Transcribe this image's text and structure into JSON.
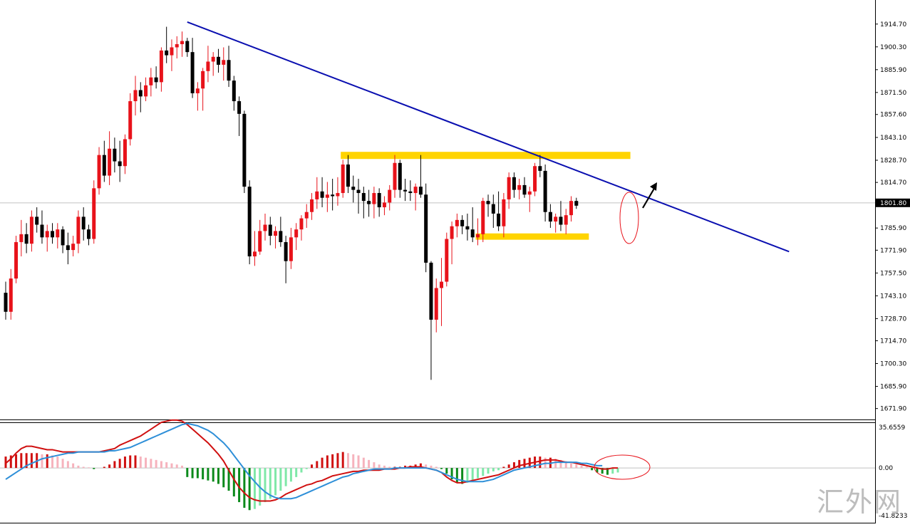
{
  "chart_data": [
    {
      "type": "candlestick",
      "price_axis": {
        "range": [
          1665.0,
          1920.0
        ],
        "ticks": [
          "1914.70",
          "1900.30",
          "1885.90",
          "1871.50",
          "1857.60",
          "1843.10",
          "1828.70",
          "1814.70",
          "1801.80",
          "1785.90",
          "1771.90",
          "1757.50",
          "1743.10",
          "1728.70",
          "1714.70",
          "1700.30",
          "1685.90",
          "1671.90"
        ],
        "tick_values": [
          1914.7,
          1900.3,
          1885.9,
          1871.5,
          1857.6,
          1843.1,
          1828.7,
          1814.7,
          1801.8,
          1785.9,
          1771.9,
          1757.5,
          1743.1,
          1728.7,
          1714.7,
          1700.3,
          1685.9,
          1671.9
        ]
      },
      "current_price": {
        "label": "1801.80",
        "value": 1801.8
      },
      "candles": [
        [
          1745,
          1752,
          1728,
          1733
        ],
        [
          1733,
          1760,
          1728,
          1754
        ],
        [
          1754,
          1781,
          1751,
          1777
        ],
        [
          1777,
          1791,
          1768,
          1782
        ],
        [
          1782,
          1789,
          1770,
          1776
        ],
        [
          1776,
          1797,
          1771,
          1793
        ],
        [
          1793,
          1799,
          1783,
          1788
        ],
        [
          1788,
          1797,
          1776,
          1780
        ],
        [
          1780,
          1788,
          1771,
          1784
        ],
        [
          1784,
          1789,
          1776,
          1780
        ],
        [
          1780,
          1789,
          1773,
          1785
        ],
        [
          1785,
          1787,
          1770,
          1775
        ],
        [
          1775,
          1783,
          1763,
          1772
        ],
        [
          1772,
          1781,
          1768,
          1776
        ],
        [
          1776,
          1797,
          1770,
          1793
        ],
        [
          1793,
          1799,
          1778,
          1785
        ],
        [
          1785,
          1788,
          1775,
          1779
        ],
        [
          1779,
          1816,
          1776,
          1811
        ],
        [
          1811,
          1837,
          1807,
          1832
        ],
        [
          1832,
          1841,
          1815,
          1819
        ],
        [
          1819,
          1847,
          1813,
          1836
        ],
        [
          1836,
          1843,
          1821,
          1828
        ],
        [
          1828,
          1841,
          1815,
          1825
        ],
        [
          1825,
          1845,
          1820,
          1842
        ],
        [
          1842,
          1871,
          1838,
          1866
        ],
        [
          1866,
          1882,
          1857,
          1873
        ],
        [
          1873,
          1878,
          1859,
          1869
        ],
        [
          1869,
          1881,
          1866,
          1876
        ],
        [
          1876,
          1887,
          1869,
          1881
        ],
        [
          1881,
          1888,
          1874,
          1878
        ],
        [
          1878,
          1900,
          1872,
          1898
        ],
        [
          1898,
          1913,
          1890,
          1895
        ],
        [
          1895,
          1905,
          1885,
          1900
        ],
        [
          1900,
          1907,
          1893,
          1902
        ],
        [
          1902,
          1910,
          1894,
          1904
        ],
        [
          1904,
          1906,
          1894,
          1897
        ],
        [
          1897,
          1906,
          1868,
          1871
        ],
        [
          1871,
          1878,
          1860,
          1874
        ],
        [
          1874,
          1887,
          1860,
          1885
        ],
        [
          1885,
          1901,
          1878,
          1891
        ],
        [
          1891,
          1897,
          1882,
          1894
        ],
        [
          1894,
          1899,
          1884,
          1889
        ],
        [
          1889,
          1900,
          1879,
          1892
        ],
        [
          1892,
          1901,
          1875,
          1879
        ],
        [
          1879,
          1882,
          1860,
          1866
        ],
        [
          1866,
          1869,
          1844,
          1858
        ],
        [
          1858,
          1860,
          1808,
          1812
        ],
        [
          1812,
          1816,
          1763,
          1768
        ],
        [
          1768,
          1784,
          1762,
          1771
        ],
        [
          1771,
          1791,
          1769,
          1784
        ],
        [
          1784,
          1795,
          1778,
          1788
        ],
        [
          1788,
          1793,
          1775,
          1781
        ],
        [
          1781,
          1787,
          1773,
          1784
        ],
        [
          1784,
          1793,
          1774,
          1777
        ],
        [
          1777,
          1781,
          1751,
          1765
        ],
        [
          1765,
          1786,
          1760,
          1780
        ],
        [
          1780,
          1789,
          1772,
          1785
        ],
        [
          1785,
          1794,
          1778,
          1792
        ],
        [
          1792,
          1801,
          1786,
          1796
        ],
        [
          1796,
          1808,
          1791,
          1804
        ],
        [
          1804,
          1818,
          1798,
          1809
        ],
        [
          1809,
          1818,
          1799,
          1805
        ],
        [
          1805,
          1815,
          1796,
          1807
        ],
        [
          1807,
          1817,
          1797,
          1806
        ],
        [
          1806,
          1818,
          1800,
          1808
        ],
        [
          1808,
          1829,
          1805,
          1826
        ],
        [
          1826,
          1832,
          1808,
          1812
        ],
        [
          1812,
          1819,
          1802,
          1810
        ],
        [
          1810,
          1817,
          1795,
          1808
        ],
        [
          1808,
          1812,
          1792,
          1803
        ],
        [
          1803,
          1810,
          1793,
          1801
        ],
        [
          1801,
          1812,
          1792,
          1808
        ],
        [
          1808,
          1811,
          1793,
          1799
        ],
        [
          1799,
          1806,
          1794,
          1802
        ],
        [
          1802,
          1813,
          1797,
          1810
        ],
        [
          1810,
          1832,
          1805,
          1827
        ],
        [
          1827,
          1829,
          1805,
          1810
        ],
        [
          1810,
          1817,
          1803,
          1809
        ],
        [
          1809,
          1816,
          1803,
          1808
        ],
        [
          1808,
          1814,
          1797,
          1812
        ],
        [
          1812,
          1832,
          1805,
          1807
        ],
        [
          1807,
          1814,
          1758,
          1764
        ],
        [
          1764,
          1765,
          1690,
          1728
        ],
        [
          1728,
          1754,
          1720,
          1748
        ],
        [
          1748,
          1767,
          1724,
          1752
        ],
        [
          1752,
          1783,
          1749,
          1779
        ],
        [
          1779,
          1790,
          1763,
          1787
        ],
        [
          1787,
          1795,
          1780,
          1791
        ],
        [
          1791,
          1794,
          1782,
          1787
        ],
        [
          1787,
          1795,
          1778,
          1785
        ],
        [
          1785,
          1799,
          1777,
          1780
        ],
        [
          1780,
          1792,
          1775,
          1782
        ],
        [
          1782,
          1805,
          1777,
          1803
        ],
        [
          1803,
          1807,
          1793,
          1801
        ],
        [
          1801,
          1807,
          1786,
          1795
        ],
        [
          1795,
          1809,
          1784,
          1787
        ],
        [
          1787,
          1808,
          1780,
          1804
        ],
        [
          1804,
          1821,
          1798,
          1818
        ],
        [
          1818,
          1821,
          1805,
          1810
        ],
        [
          1810,
          1817,
          1804,
          1813
        ],
        [
          1813,
          1818,
          1805,
          1807
        ],
        [
          1807,
          1812,
          1796,
          1809
        ],
        [
          1809,
          1827,
          1806,
          1825
        ],
        [
          1825,
          1832,
          1818,
          1822
        ],
        [
          1822,
          1826,
          1790,
          1796
        ],
        [
          1796,
          1801,
          1786,
          1790
        ],
        [
          1790,
          1795,
          1783,
          1793
        ],
        [
          1793,
          1803,
          1784,
          1788
        ],
        [
          1788,
          1798,
          1782,
          1794
        ],
        [
          1794,
          1806,
          1790,
          1803
        ],
        [
          1803,
          1805,
          1798,
          1800
        ]
      ],
      "trendline": {
        "from_index": 35,
        "from_value": 1916,
        "to_index": 151,
        "to_value": 1771,
        "color": "#0a0fb0"
      },
      "zones": [
        {
          "name": "resistance",
          "from_index": 65,
          "to_index": 120,
          "low": 1829.5,
          "high": 1834,
          "color": "#ffd400"
        },
        {
          "name": "support",
          "from_index": 91,
          "to_index": 112,
          "low": 1778.5,
          "high": 1782.5,
          "color": "#ffd400"
        }
      ],
      "colors": {
        "bull": "#e8121a",
        "bear": "#000000",
        "trendline": "#0a0fb0",
        "zone": "#ffd400",
        "ellipse": "#e8121a",
        "grid_line": "#c0c0c0"
      }
    },
    {
      "type": "macd",
      "axis": {
        "range": [
          -41.8233,
          35.6559
        ],
        "ticks": [
          "35.6559",
          "0.00",
          "-41.8233"
        ],
        "tick_values": [
          35.6559,
          0,
          -41.8233
        ]
      },
      "histogram": [
        10,
        11,
        12,
        13,
        13,
        13,
        13,
        12,
        12,
        11,
        10,
        8,
        6,
        4,
        2,
        1,
        0.5,
        -1,
        0,
        1,
        3,
        6,
        8,
        10,
        11,
        11,
        10,
        9,
        8,
        7,
        6,
        5,
        4,
        3,
        2,
        -8,
        -9,
        -9,
        -10,
        -11,
        -12,
        -14,
        -17,
        -20,
        -25,
        -30,
        -35,
        -37,
        -36,
        -33,
        -30,
        -27,
        -24,
        -20,
        -16,
        -12,
        -8,
        -4,
        -1,
        3,
        6,
        9,
        11,
        12,
        13,
        14,
        13,
        12,
        11,
        9,
        7,
        5,
        3,
        2,
        1,
        1,
        1,
        2,
        2,
        3,
        4,
        3,
        2,
        1,
        -1,
        -5,
        -10,
        -13,
        -14,
        -13,
        -11,
        -9,
        -7,
        -5,
        -3,
        -2,
        1,
        3,
        5,
        7,
        8,
        9,
        10,
        10,
        9,
        9,
        8,
        7,
        6,
        4,
        3,
        2,
        1,
        -2,
        -4,
        -5,
        -6,
        -5,
        -4
      ],
      "series": [
        {
          "values": [
            4,
            8,
            13,
            17,
            19,
            19,
            18,
            17,
            16,
            16,
            15,
            14,
            14,
            14,
            14,
            14,
            14,
            14,
            14,
            15,
            16,
            17,
            20,
            22,
            24,
            26,
            28,
            31,
            34,
            37,
            40,
            41,
            42,
            42,
            41,
            38,
            34,
            30,
            26,
            22,
            17,
            12,
            6,
            -2,
            -10,
            -17,
            -22,
            -26,
            -28,
            -29,
            -29,
            -29,
            -28,
            -26,
            -23,
            -21,
            -19,
            -17,
            -15,
            -14,
            -12,
            -11,
            -9,
            -7,
            -6,
            -5,
            -4,
            -3,
            -3,
            -2,
            -2,
            -2,
            -2,
            -1,
            -1,
            -1,
            0,
            0,
            1,
            1,
            1,
            0,
            -1,
            -2,
            -4,
            -8,
            -11,
            -13,
            -13,
            -12,
            -11,
            -10,
            -9,
            -8,
            -7,
            -6,
            -4,
            -2,
            0,
            2,
            3,
            4,
            5,
            6,
            7,
            7,
            7,
            6,
            5,
            5,
            4,
            3,
            2,
            1,
            0,
            -1,
            -1,
            0,
            0
          ],
          "color": "#d01010"
        },
        {
          "values": [
            -10,
            -7,
            -4,
            -1,
            2,
            4,
            6,
            8,
            9,
            10,
            11,
            12,
            13,
            13,
            14,
            14,
            14,
            14,
            14,
            14,
            15,
            15,
            16,
            17,
            18,
            20,
            22,
            24,
            26,
            28,
            30,
            32,
            34,
            36,
            38,
            39,
            38,
            37,
            35,
            33,
            30,
            26,
            22,
            17,
            11,
            5,
            -1,
            -7,
            -12,
            -17,
            -21,
            -24,
            -26,
            -27,
            -27,
            -27,
            -26,
            -24,
            -22,
            -20,
            -18,
            -16,
            -14,
            -12,
            -10,
            -8,
            -7,
            -5,
            -4,
            -3,
            -2,
            -1,
            -1,
            -1,
            -1,
            0,
            0,
            0,
            0,
            0,
            0,
            0,
            -1,
            -2,
            -4,
            -6,
            -8,
            -10,
            -11,
            -12,
            -12,
            -12,
            -12,
            -11,
            -10,
            -8,
            -6,
            -4,
            -2,
            -1,
            0,
            1,
            2,
            3,
            4,
            4,
            5,
            5,
            5,
            5,
            5,
            4,
            4,
            3,
            2,
            2
          ],
          "color": "#2e8fd8"
        }
      ],
      "colors": {
        "hist_up_strong": "#d01010",
        "hist_up_weak": "#f6b3bd",
        "hist_down_strong": "#0b8a1b",
        "hist_down_weak": "#7fe8a8",
        "ellipse": "#e8121a"
      }
    }
  ],
  "watermark": "汇外网"
}
